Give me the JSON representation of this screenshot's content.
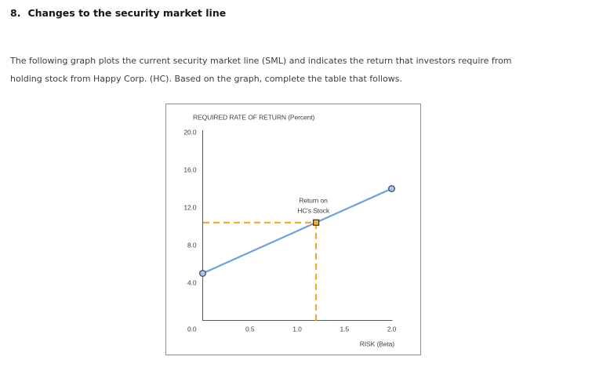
{
  "heading": {
    "number": "8.",
    "title": "Changes to the security market line"
  },
  "intro": {
    "lines": [
      "The following graph plots the current security market line (SML) and indicates the return that investors require from",
      "holding stock from Happy Corp. (HC). Based on the graph, complete the table that follows."
    ]
  },
  "chart_data": {
    "type": "line",
    "title": "REQUIRED RATE OF RETURN (Percent)",
    "xlabel": "RISK (Beta)",
    "ylabel": "REQUIRED RATE OF RETURN (Percent)",
    "xlim": [
      0.0,
      2.0
    ],
    "ylim": [
      0.0,
      20.0
    ],
    "grid": false,
    "x_ticks": [
      "0.0",
      "0.5",
      "1.0",
      "1.5",
      "2.0"
    ],
    "y_ticks": [
      "20.0",
      "16.0",
      "12.0",
      "8.0",
      "4.0"
    ],
    "origin_label": "0.0",
    "series": [
      {
        "name": "Security Market Line (SML)",
        "type": "line",
        "color": "#6FA0D6",
        "marker": "circle",
        "marker_fill": "#A9C7E8",
        "marker_stroke": "#44546A",
        "points": [
          [
            0.0,
            5.0
          ],
          [
            2.0,
            14.0
          ]
        ]
      }
    ],
    "annotation_point": {
      "label_lines": [
        "Return on",
        "HC's Stock"
      ],
      "x": 1.2,
      "y": 10.4,
      "marker": "square",
      "marker_fill": "#FBAD26",
      "marker_stroke": "#333333",
      "guide_color": "#F9A11E",
      "guide_style": "dashed"
    },
    "colors": {
      "axis": "#58595b",
      "text": "#404040",
      "frame": "#8f8f8f"
    }
  }
}
